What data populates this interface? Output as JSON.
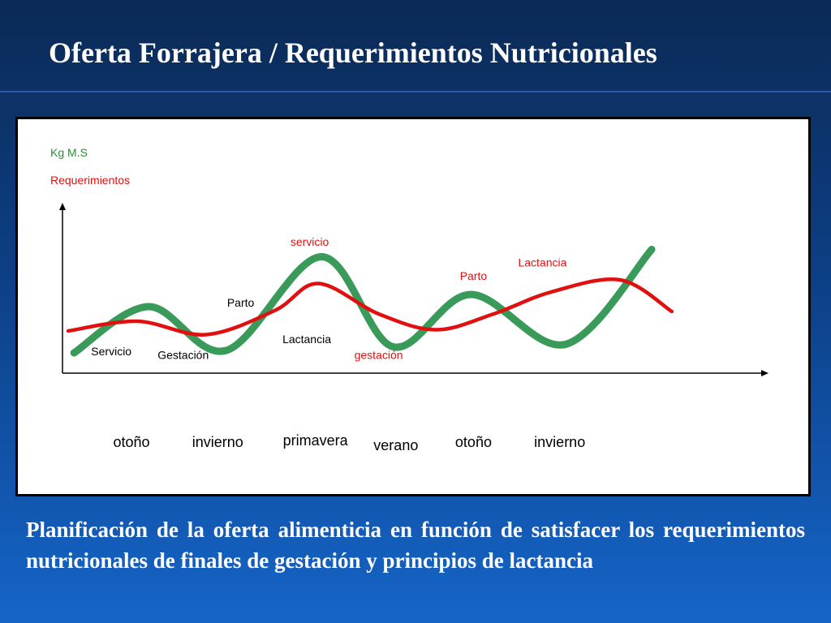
{
  "slide": {
    "title": "Oferta Forrajera / Requerimientos Nutricionales",
    "caption": "Planificación de la oferta alimenticia en función de satisfacer los requerimientos nutricionales de finales de gestación y principios de lactancia"
  },
  "chart_data": {
    "type": "line",
    "title": "",
    "ylabel_lines": [
      {
        "text": "Kg M.S",
        "color": "#2e8b3a"
      },
      {
        "text": "Requerimientos",
        "color": "#e01010"
      }
    ],
    "xlim": [
      0,
      12
    ],
    "ylim": [
      0,
      10
    ],
    "grid": false,
    "series": [
      {
        "name": "Kg M.S",
        "color": "#3a9a5a",
        "x": [
          0.2,
          1.5,
          2.85,
          4.5,
          5.75,
          7.1,
          8.75,
          10.25
        ],
        "y": [
          0.8,
          4.6,
          1.0,
          8.7,
          1.3,
          5.6,
          1.5,
          9.3
        ]
      },
      {
        "name": "Requerimientos",
        "color": "#e01010",
        "x": [
          0.1,
          1.3,
          2.5,
          3.7,
          4.45,
          5.5,
          6.5,
          7.5,
          8.5,
          9.7,
          10.6
        ],
        "y": [
          2.6,
          3.4,
          2.3,
          4.3,
          6.5,
          4.0,
          2.7,
          4.0,
          5.8,
          6.8,
          4.2
        ]
      }
    ],
    "seasons": [
      {
        "label": "otoño",
        "x": 1.2
      },
      {
        "label": "invierno",
        "x": 2.7
      },
      {
        "label": "primavera",
        "x": 4.4
      },
      {
        "label": "verano",
        "x": 5.8
      },
      {
        "label": "otoño",
        "x": 7.15
      },
      {
        "label": "invierno",
        "x": 8.65
      }
    ],
    "annotations": [
      {
        "text": "Servicio",
        "x": 0.85,
        "y": 0.6,
        "color": "#000000"
      },
      {
        "text": "Gestación",
        "x": 2.1,
        "y": 0.3,
        "color": "#000000"
      },
      {
        "text": "Parto",
        "x": 3.1,
        "y": 4.6,
        "color": "#000000"
      },
      {
        "text": "servicio",
        "x": 4.3,
        "y": 9.6,
        "color": "#e01010"
      },
      {
        "text": "Lactancia",
        "x": 4.25,
        "y": 1.6,
        "color": "#000000"
      },
      {
        "text": "gestación",
        "x": 5.5,
        "y": 0.3,
        "color": "#e01010"
      },
      {
        "text": "Parto",
        "x": 7.15,
        "y": 6.8,
        "color": "#e01010"
      },
      {
        "text": "Lactancia",
        "x": 8.35,
        "y": 7.9,
        "color": "#e01010"
      }
    ]
  }
}
